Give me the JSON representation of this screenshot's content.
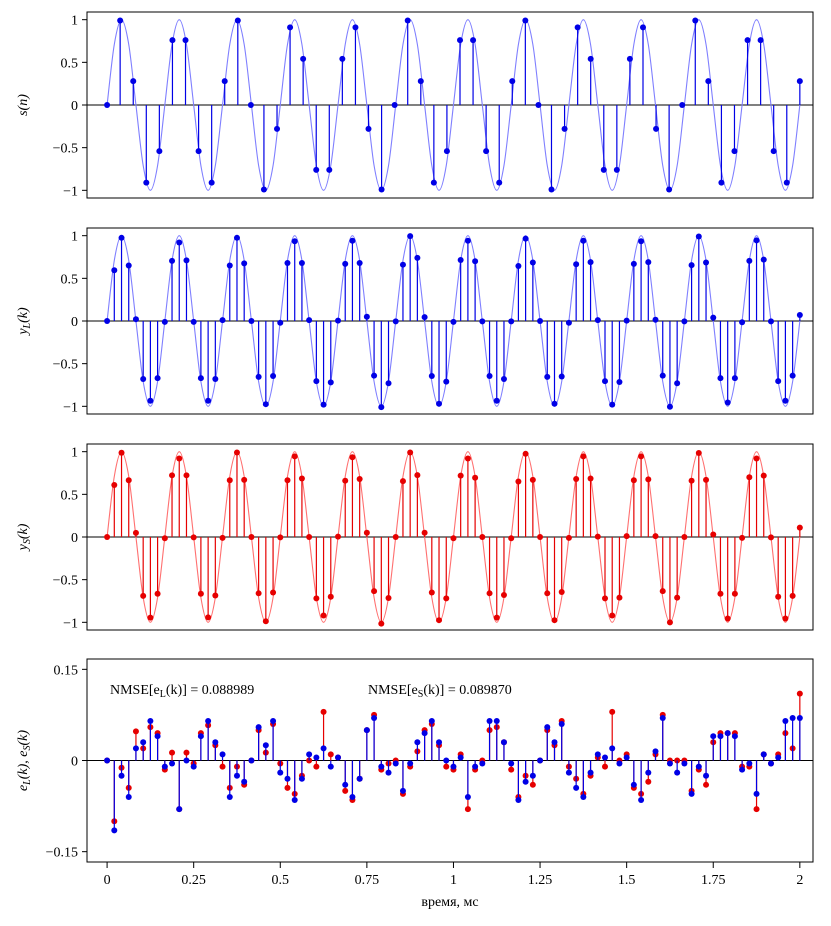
{
  "chart_data": {
    "type": "stem",
    "xlabel": "время, мс",
    "xlim": [
      -0.058,
      2.038
    ],
    "xticks": [
      0,
      0.25,
      0.5,
      0.75,
      1,
      1.25,
      1.5,
      1.75,
      2
    ],
    "x": [
      0,
      0.0208,
      0.0417,
      0.0625,
      0.0833,
      0.1042,
      0.125,
      0.1458,
      0.1667,
      0.1875,
      0.2083,
      0.2292,
      0.25,
      0.2708,
      0.2917,
      0.3125,
      0.3333,
      0.3542,
      0.375,
      0.3958,
      0.4167,
      0.4375,
      0.4583,
      0.4792,
      0.5,
      0.5208,
      0.5417,
      0.5625,
      0.5833,
      0.6042,
      0.625,
      0.6458,
      0.6667,
      0.6875,
      0.7083,
      0.7292,
      0.75,
      0.7708,
      0.7917,
      0.8125,
      0.8333,
      0.8542,
      0.875,
      0.8958,
      0.9167,
      0.9375,
      0.9583,
      0.9792,
      1,
      1.0208,
      1.0417,
      1.0625,
      1.0833,
      1.1042,
      1.125,
      1.1458,
      1.1667,
      1.1875,
      1.2083,
      1.2292,
      1.25,
      1.2708,
      1.2917,
      1.3125,
      1.3333,
      1.3542,
      1.375,
      1.3958,
      1.4167,
      1.4375,
      1.4583,
      1.4792,
      1.5,
      1.5208,
      1.5417,
      1.5625,
      1.5833,
      1.6042,
      1.625,
      1.6458,
      1.6667,
      1.6875,
      1.7083,
      1.7292,
      1.75,
      1.7708,
      1.7917,
      1.8125,
      1.8333,
      1.8542,
      1.875,
      1.8958,
      1.9167,
      1.9375,
      1.9583,
      1.9792,
      2
    ],
    "panels": [
      {
        "ylabel": "s(n)",
        "ylim": [
          -1.09,
          1.09
        ],
        "yticks": [
          {
            "value": -1,
            "label": "−1"
          },
          {
            "value": -0.5,
            "label": "−0.5"
          },
          0,
          0.5,
          1
        ],
        "x": [
          0,
          0.0377,
          0.0755,
          0.1132,
          0.1509,
          0.1887,
          0.2264,
          0.2642,
          0.3019,
          0.3396,
          0.3774,
          0.4151,
          0.4528,
          0.4906,
          0.5283,
          0.566,
          0.6038,
          0.6415,
          0.6792,
          0.717,
          0.7547,
          0.7925,
          0.8302,
          0.8679,
          0.9057,
          0.9434,
          0.9811,
          1.0189,
          1.0566,
          1.0943,
          1.1321,
          1.1698,
          1.2075,
          1.2453,
          1.283,
          1.3208,
          1.3585,
          1.3962,
          1.434,
          1.4717,
          1.5094,
          1.5472,
          1.5849,
          1.6226,
          1.6604,
          1.6981,
          1.7358,
          1.7736,
          1.8113,
          1.8491,
          1.8868,
          1.9245,
          1.9623,
          2
        ],
        "curve_color": "#7f7fff",
        "curve": [
          0,
          0.71,
          1,
          0.71,
          0,
          -0.71,
          -1,
          -0.71,
          0,
          0.71,
          1,
          0.71,
          0,
          -0.71,
          -1,
          -0.71,
          0,
          0.71,
          1,
          0.71,
          0,
          -0.71,
          -1,
          -0.71,
          0,
          0.71,
          1,
          0.71,
          0,
          -0.71,
          -1,
          -0.71,
          0,
          0.71,
          1,
          0.71,
          0,
          -0.71,
          -1,
          -0.71,
          0,
          0.71,
          1,
          0.71,
          0,
          -0.71,
          -1,
          -0.71,
          0,
          0.71,
          1,
          0.71,
          0,
          -0.71,
          -1,
          -0.71,
          0,
          0.71,
          1,
          0.71,
          0,
          -0.71,
          -1,
          -0.71,
          0,
          0.71,
          1,
          0.71,
          0,
          -0.71,
          -1,
          -0.71,
          0,
          0.71,
          1,
          0.71,
          0,
          -0.71,
          -1,
          -0.71,
          0,
          0.71,
          1,
          0.71,
          0,
          -0.71,
          -1,
          -0.71,
          0,
          0.71,
          1,
          0.71,
          0,
          -0.71,
          -1,
          -0.71,
          0
        ],
        "series": [
          {
            "color": "#0000e6",
            "values": [
              0,
              0.99,
              0.28,
              -0.91,
              -0.54,
              0.76,
              0.76,
              -0.54,
              -0.91,
              0.28,
              0.99,
              0,
              -0.99,
              -0.28,
              0.91,
              0.54,
              -0.76,
              -0.76,
              0.54,
              0.91,
              -0.28,
              -0.99,
              0,
              0.99,
              0.28,
              -0.91,
              -0.54,
              0.76,
              0.76,
              -0.54,
              -0.91,
              0.28,
              0.99,
              0,
              -0.99,
              -0.28,
              0.91,
              0.54,
              -0.76,
              -0.76,
              0.54,
              0.91,
              -0.28,
              -0.99,
              0,
              0.99,
              0.28,
              -0.91,
              -0.54,
              0.76,
              0.76,
              -0.54,
              -0.91,
              0.28
            ]
          }
        ]
      },
      {
        "ylabel": "yL(k)",
        "ylim": [
          -1.09,
          1.09
        ],
        "yticks": [
          {
            "value": -1,
            "label": "−1"
          },
          {
            "value": -0.5,
            "label": "−0.5"
          },
          0,
          0.5,
          1
        ],
        "curve_color": "#7f7fff",
        "curve": [
          0,
          0.71,
          1,
          0.71,
          0,
          -0.71,
          -1,
          -0.71,
          0,
          0.71,
          1,
          0.71,
          0,
          -0.71,
          -1,
          -0.71,
          0,
          0.71,
          1,
          0.71,
          0,
          -0.71,
          -1,
          -0.71,
          0,
          0.71,
          1,
          0.71,
          0,
          -0.71,
          -1,
          -0.71,
          0,
          0.71,
          1,
          0.71,
          0,
          -0.71,
          -1,
          -0.71,
          0,
          0.71,
          1,
          0.71,
          0,
          -0.71,
          -1,
          -0.71,
          0,
          0.71,
          1,
          0.71,
          0,
          -0.71,
          -1,
          -0.71,
          0,
          0.71,
          1,
          0.71,
          0,
          -0.71,
          -1,
          -0.71,
          0,
          0.71,
          1,
          0.71,
          0,
          -0.71,
          -1,
          -0.71,
          0,
          0.71,
          1,
          0.71,
          0,
          -0.71,
          -1,
          -0.71,
          0,
          0.71,
          1,
          0.71,
          0,
          -0.71,
          -1,
          -0.71,
          0,
          0.71,
          1,
          0.71,
          0,
          -0.71,
          -1,
          -0.71,
          0
        ],
        "series": [
          {
            "color": "#0000e6",
            "values": [
              0,
              0.595,
              0.975,
              0.65,
              0.02,
              -0.68,
              -0.935,
              -0.67,
              -0.01,
              0.705,
              0.92,
              0.71,
              -0.01,
              -0.67,
              -0.935,
              -0.68,
              0.01,
              0.65,
              0.975,
              0.675,
              0,
              -0.655,
              -0.975,
              -0.645,
              -0.02,
              0.68,
              0.935,
              0.68,
              0.01,
              -0.705,
              -0.98,
              -0.72,
              0.005,
              0.67,
              0.94,
              0.68,
              0.05,
              -0.64,
              -1.01,
              -0.73,
              -0.005,
              0.66,
              0.995,
              0.74,
              0.045,
              -0.645,
              -0.97,
              -0.71,
              -0.01,
              0.715,
              0.94,
              0.7,
              -0.005,
              -0.645,
              -0.935,
              -0.68,
              -0.005,
              0.645,
              0.965,
              0.685,
              0,
              -0.655,
              -0.97,
              -0.65,
              -0.02,
              0.665,
              0.94,
              0.69,
              0.01,
              -0.705,
              -0.98,
              -0.715,
              0.005,
              0.67,
              0.935,
              0.69,
              0.015,
              -0.64,
              -1.005,
              -0.73,
              -0.005,
              0.655,
              0.99,
              0.685,
              0.04,
              -0.67,
              -0.955,
              -0.67,
              -0.015,
              0.705,
              0.945,
              0.72,
              -0.005,
              -0.705,
              -0.935,
              -0.64,
              0.07
            ]
          }
        ]
      },
      {
        "ylabel": "yS(k)",
        "ylim": [
          -1.09,
          1.09
        ],
        "yticks": [
          {
            "value": -1,
            "label": "−1"
          },
          {
            "value": -0.5,
            "label": "−0.5"
          },
          0,
          0.5,
          1
        ],
        "curve_color": "#ff7070",
        "curve": [
          0,
          0.71,
          1,
          0.71,
          0,
          -0.71,
          -1,
          -0.71,
          0,
          0.71,
          1,
          0.71,
          0,
          -0.71,
          -1,
          -0.71,
          0,
          0.71,
          1,
          0.71,
          0,
          -0.71,
          -1,
          -0.71,
          0,
          0.71,
          1,
          0.71,
          0,
          -0.71,
          -1,
          -0.71,
          0,
          0.71,
          1,
          0.71,
          0,
          -0.71,
          -1,
          -0.71,
          0,
          0.71,
          1,
          0.71,
          0,
          -0.71,
          -1,
          -0.71,
          0,
          0.71,
          1,
          0.71,
          0,
          -0.71,
          -1,
          -0.71,
          0,
          0.71,
          1,
          0.71,
          0,
          -0.71,
          -1,
          -0.71,
          0,
          0.71,
          1,
          0.71,
          0,
          -0.71,
          -1,
          -0.71,
          0,
          0.71,
          1,
          0.71,
          0,
          -0.71,
          -1,
          -0.71,
          0,
          0.71,
          1,
          0.71,
          0,
          -0.71,
          -1,
          -0.71,
          0,
          0.71,
          1,
          0.71,
          0,
          -0.71,
          -1,
          -0.71,
          0
        ],
        "series": [
          {
            "color": "#e60000",
            "values": [
              0,
              0.61,
              0.988,
              0.665,
              0.048,
              -0.69,
              -0.945,
              -0.665,
              -0.015,
              0.723,
              0.92,
              0.723,
              -0.005,
              -0.665,
              -0.942,
              -0.685,
              -0.01,
              0.665,
              0.99,
              0.67,
              0,
              -0.66,
              -0.987,
              -0.65,
              -0.005,
              0.665,
              0.945,
              0.685,
              0,
              -0.72,
              -0.92,
              -0.7,
              0.005,
              0.66,
              0.935,
              0.68,
              0.05,
              -0.635,
              -1.015,
              -0.715,
              0,
              0.655,
              0.99,
              0.725,
              0.05,
              -0.65,
              -0.975,
              -0.72,
              -0.015,
              0.72,
              0.92,
              0.695,
              0,
              -0.66,
              -0.945,
              -0.68,
              -0.015,
              0.65,
              0.975,
              0.67,
              0,
              -0.66,
              -0.975,
              -0.645,
              -0.01,
              0.68,
              0.945,
              0.685,
              0.005,
              -0.72,
              -0.92,
              -0.71,
              0.01,
              0.665,
              0.945,
              0.675,
              0.01,
              -0.635,
              -1,
              -0.71,
              0,
              0.66,
              0.985,
              0.67,
              0.03,
              -0.665,
              -0.955,
              -0.665,
              -0.01,
              0.7,
              0.92,
              0.72,
              -0.005,
              -0.7,
              -0.955,
              -0.69,
              0.11
            ]
          }
        ]
      },
      {
        "ylabel": "eL(k), eS(k)",
        "ylim": [
          -0.167,
          0.167
        ],
        "yticks": [
          {
            "value": -0.15,
            "label": "−0.15"
          },
          0,
          0.15
        ],
        "annotations": [
          "NMSE[eL(k)] = 0.088989",
          "NMSE[eS(k)] = 0.089870"
        ],
        "series": [
          {
            "color": "#e60000",
            "values": [
              0,
              -0.1,
              -0.012,
              -0.045,
              0.048,
              0.02,
              0.055,
              0.045,
              -0.015,
              0.013,
              -0.08,
              0.013,
              -0.005,
              0.045,
              0.058,
              0.025,
              -0.01,
              -0.045,
              -0.01,
              -0.04,
              0,
              0.05,
              0.013,
              0.06,
              -0.005,
              -0.045,
              -0.055,
              -0.025,
              0,
              -0.01,
              0.08,
              0.01,
              0.005,
              -0.05,
              -0.065,
              -0.03,
              0.05,
              0.075,
              -0.015,
              -0.005,
              0,
              -0.055,
              -0.01,
              0.015,
              0.05,
              0.06,
              0.025,
              -0.01,
              -0.015,
              0.01,
              -0.08,
              -0.015,
              0,
              0.05,
              0.055,
              0.03,
              -0.015,
              -0.06,
              -0.025,
              -0.04,
              0,
              0.05,
              0.025,
              0.065,
              -0.01,
              -0.03,
              -0.055,
              -0.025,
              0.005,
              -0.01,
              0.08,
              0,
              0.01,
              -0.045,
              -0.055,
              -0.035,
              0.01,
              0.075,
              0,
              0,
              0,
              -0.05,
              -0.015,
              -0.04,
              0.03,
              0.045,
              0.045,
              0.045,
              -0.01,
              -0.01,
              -0.08,
              0.01,
              -0.005,
              0.01,
              0.045,
              0.02,
              0.11
            ]
          },
          {
            "color": "#0000e6",
            "values": [
              0,
              -0.115,
              -0.025,
              -0.06,
              0.02,
              0.03,
              0.065,
              0.04,
              -0.01,
              -0.005,
              -0.08,
              0,
              -0.01,
              0.04,
              0.065,
              0.03,
              0.01,
              -0.06,
              -0.025,
              -0.035,
              0,
              0.055,
              0.025,
              0.065,
              -0.02,
              -0.03,
              -0.065,
              -0.03,
              0.01,
              0.005,
              0.02,
              -0.01,
              0.005,
              -0.04,
              -0.06,
              -0.03,
              0.05,
              0.07,
              -0.01,
              -0.02,
              -0.005,
              -0.05,
              -0.005,
              0.03,
              0.045,
              0.065,
              0.03,
              0,
              -0.01,
              0.005,
              -0.06,
              -0.01,
              -0.005,
              0.065,
              0.065,
              0.03,
              -0.005,
              -0.065,
              -0.035,
              -0.025,
              0,
              0.055,
              0.03,
              0.06,
              -0.02,
              -0.045,
              -0.06,
              -0.02,
              0.01,
              0.005,
              0.02,
              -0.005,
              0.005,
              -0.04,
              -0.065,
              -0.02,
              0.015,
              0.07,
              -0.005,
              -0.02,
              -0.005,
              -0.055,
              -0.01,
              -0.025,
              0.04,
              0.04,
              0.045,
              0.04,
              -0.015,
              -0.005,
              -0.055,
              0.01,
              -0.005,
              0.005,
              0.065,
              0.07,
              0.07
            ]
          }
        ]
      }
    ]
  }
}
